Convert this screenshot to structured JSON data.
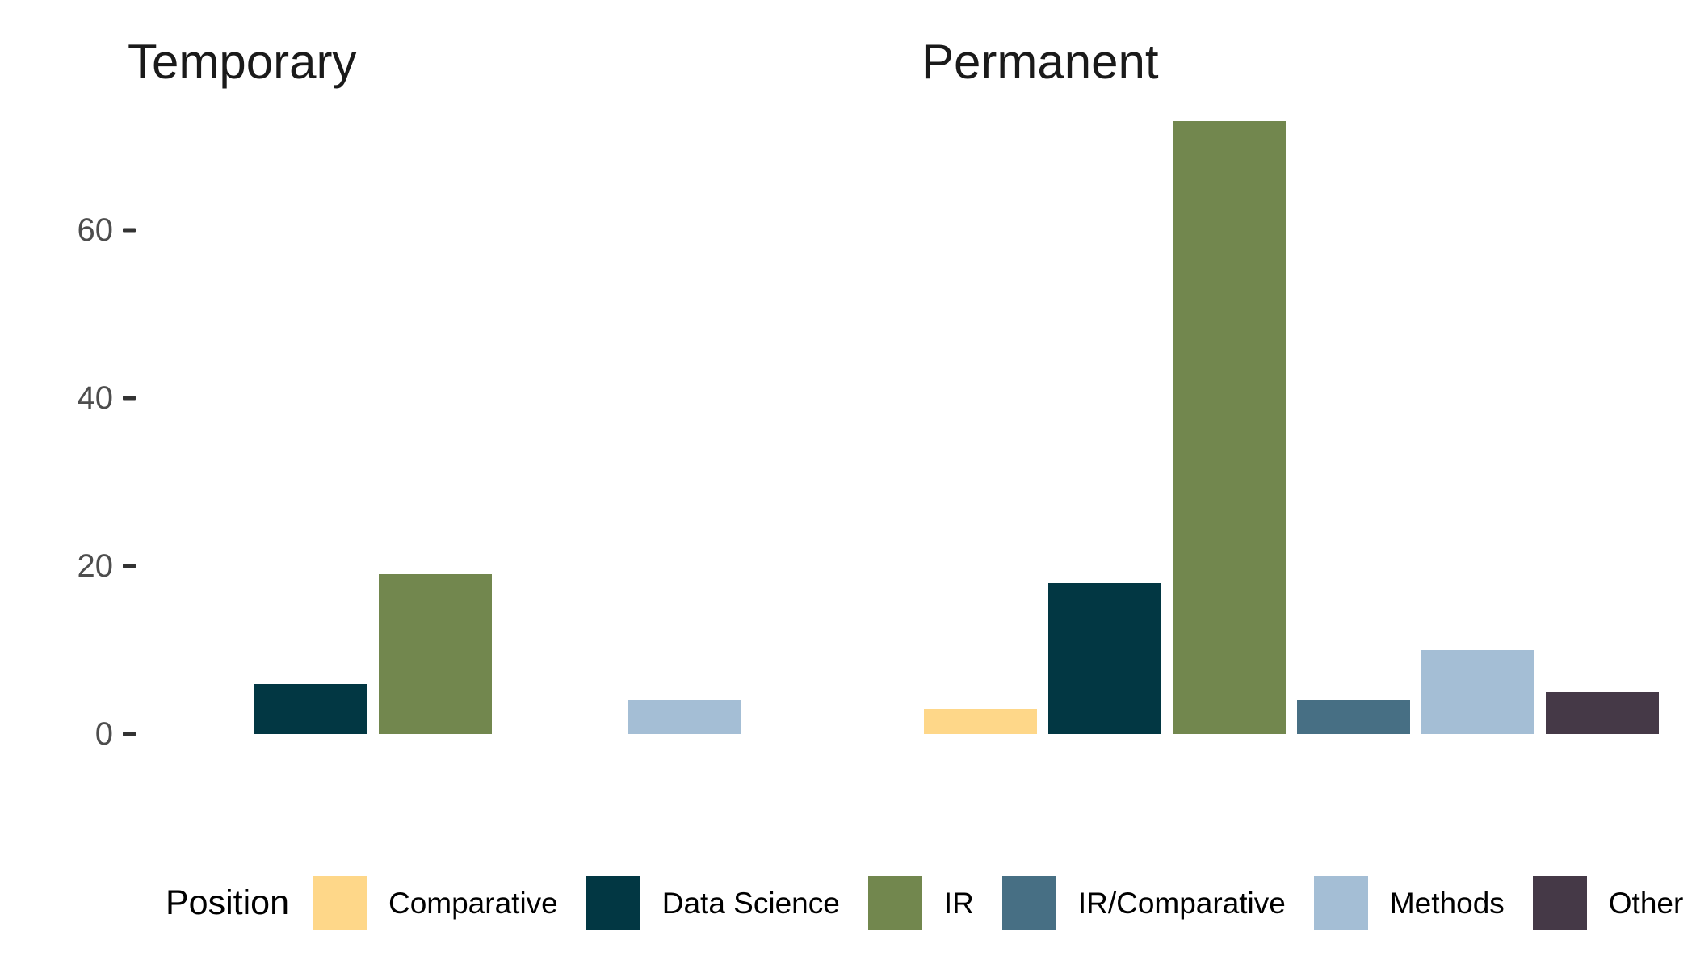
{
  "chart_data": {
    "type": "bar",
    "title": "",
    "facet_variable_values": [
      "Temporary",
      "Permanent"
    ],
    "categories": [
      "Comparative",
      "Data Science",
      "IR",
      "IR/Comparative",
      "Methods",
      "Other"
    ],
    "colors": [
      "#FED789",
      "#023743",
      "#72874E",
      "#476F84",
      "#A4BED5",
      "#453947"
    ],
    "facets": [
      {
        "name": "Temporary",
        "values": [
          0,
          6,
          19,
          0,
          4,
          0
        ]
      },
      {
        "name": "Permanent",
        "values": [
          3,
          18,
          73,
          4,
          10,
          5
        ]
      }
    ],
    "xlabel": "",
    "ylabel": "",
    "yticks": [
      0,
      20,
      40,
      60
    ],
    "ylim": [
      0,
      76
    ],
    "grid": false,
    "x_axis_labels_shown": false,
    "legend_title": "Position",
    "legend_position": "bottom"
  },
  "styles": {
    "background": "#FFFFFF",
    "facet_title_color": "#1A1A1A",
    "axis_text_color": "#4D4D4D",
    "tick_mark_color": "#333333",
    "legend_text_color": "#000000"
  }
}
